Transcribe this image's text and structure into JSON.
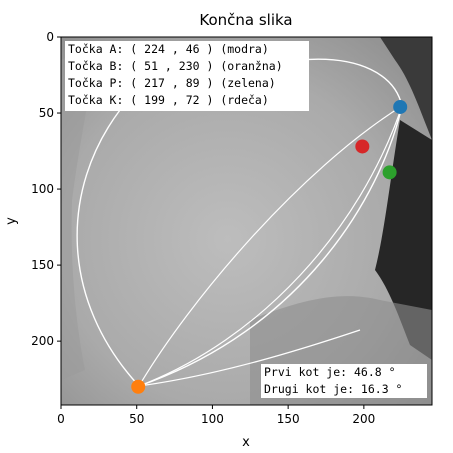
{
  "chart_data": {
    "type": "scatter",
    "title": "Končna slika",
    "xlabel": "x",
    "ylabel": "y",
    "xlim": [
      0,
      245
    ],
    "ylim": [
      242,
      0
    ],
    "xticks": [
      0,
      50,
      100,
      150,
      200
    ],
    "yticks": [
      0,
      50,
      100,
      150,
      200
    ],
    "background": "grayscale image",
    "points": [
      {
        "label": "A",
        "x": 224,
        "y": 46,
        "color": "#1f77b4"
      },
      {
        "label": "B",
        "x": 51,
        "y": 230,
        "color": "#ff7f0e"
      },
      {
        "label": "P",
        "x": 217,
        "y": 89,
        "color": "#2ca02c"
      },
      {
        "label": "K",
        "x": 199,
        "y": 72,
        "color": "#d62728"
      }
    ],
    "outline_color": "#ffffff",
    "annotations": {
      "points_box": [
        "Točka A: ( 224 , 46 ) (modra)",
        "Točka B: ( 51 , 230 ) (oranžna)",
        "Točka P: ( 217 , 89 ) (zelena)",
        "Točka K: ( 199 , 72 ) (rdeča)"
      ],
      "angles_box": [
        "Prvi kot je:  46.8 °",
        "Drugi kot je:  16.3 °"
      ]
    }
  }
}
